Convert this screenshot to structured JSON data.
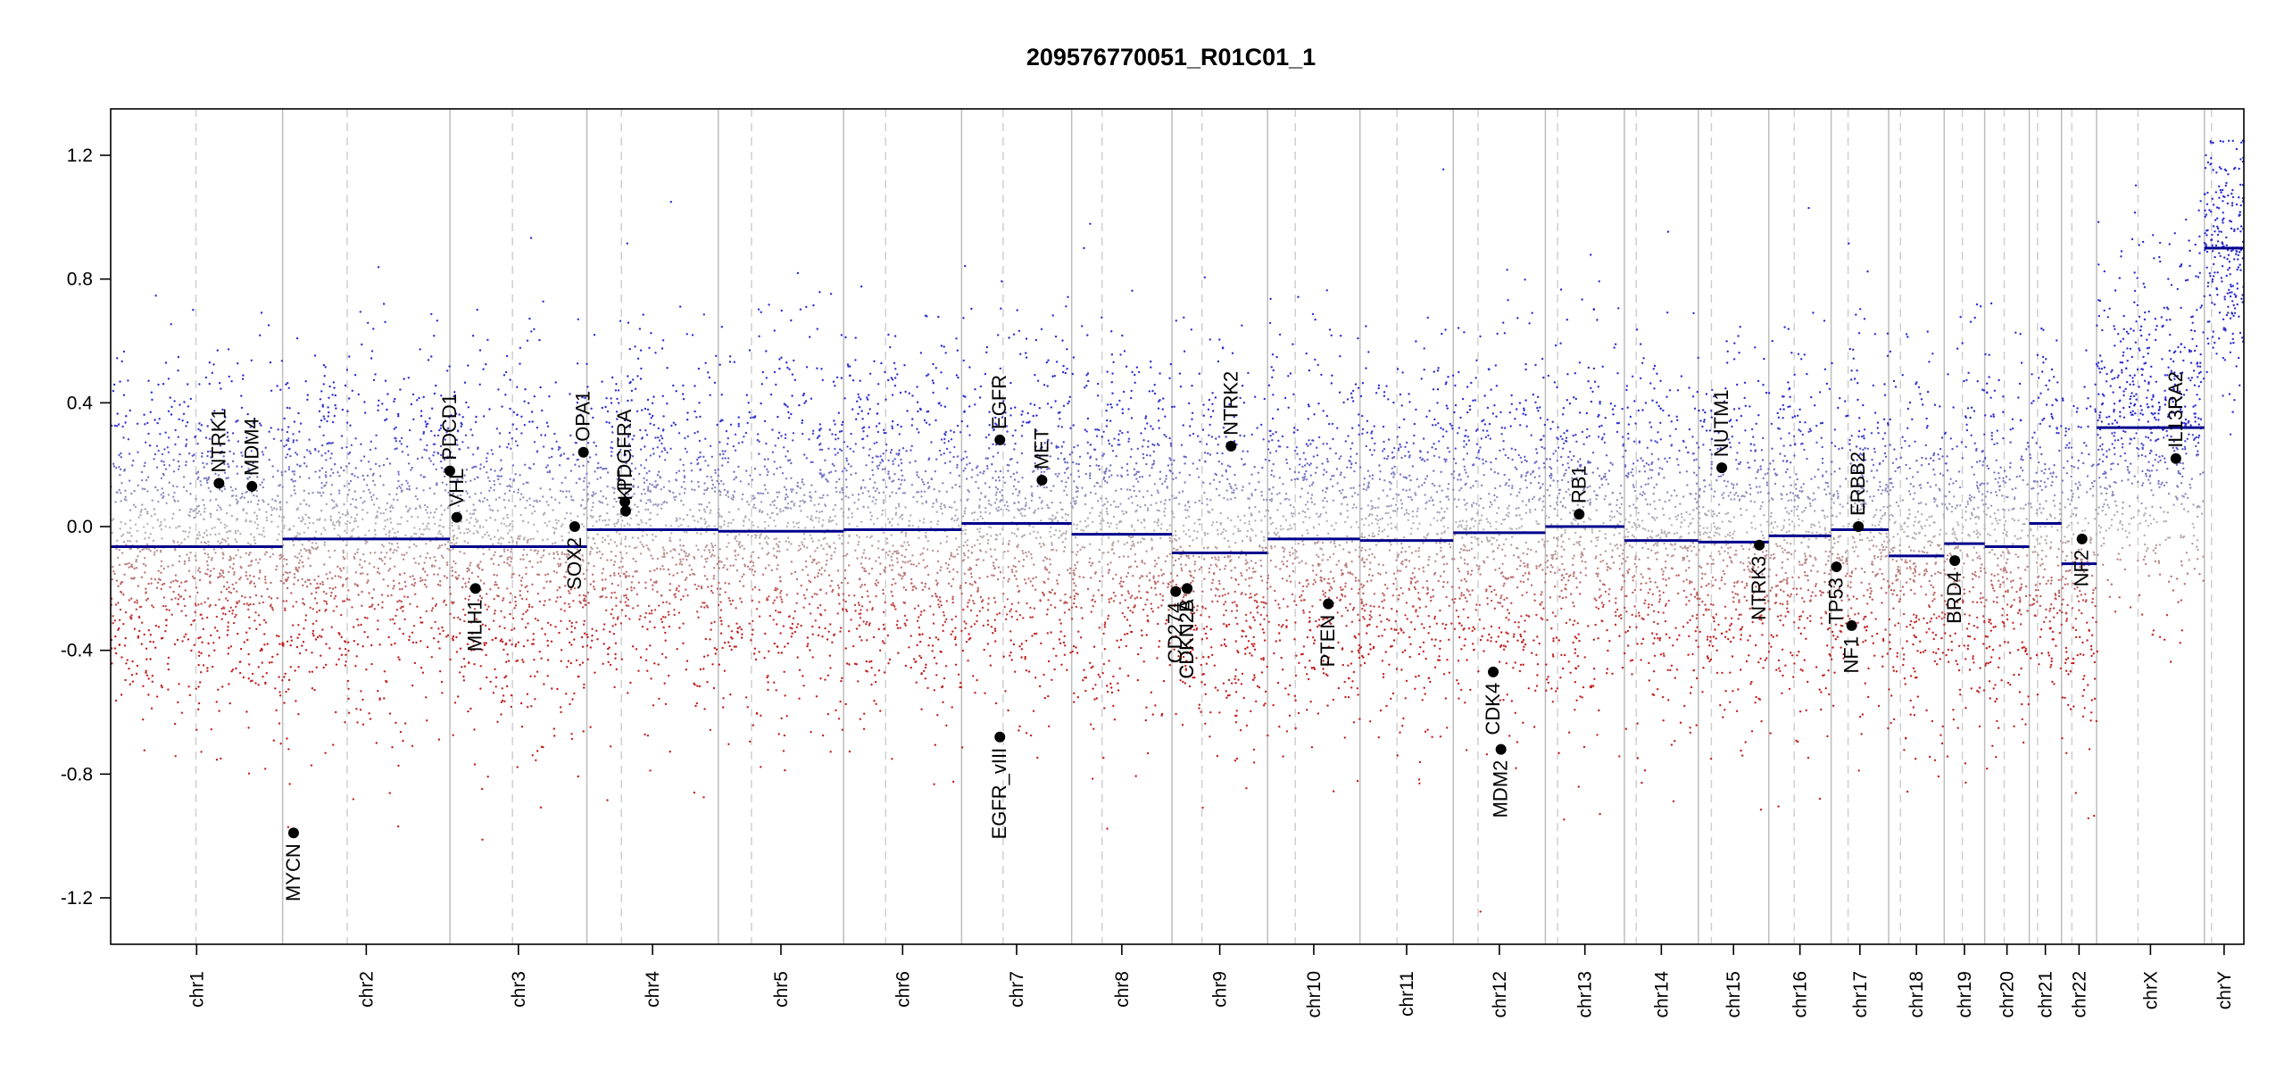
{
  "chart_data": {
    "type": "scatter",
    "title": "209576770051_R01C01_1",
    "xlabel": "",
    "ylabel": "",
    "ylim": [
      -1.35,
      1.35
    ],
    "y_ticks": [
      -1.2,
      -0.8,
      -0.4,
      0.0,
      0.4,
      0.8,
      1.2
    ],
    "y_tick_labels": [
      "-1.2",
      "-0.8",
      "-0.4",
      "0.0",
      "0.4",
      "0.8",
      "1.2"
    ],
    "chromosomes": [
      {
        "name": "chr1",
        "start": 0,
        "end": 248.9,
        "centromere": 123.4,
        "segment": -0.065
      },
      {
        "name": "chr2",
        "start": 248.9,
        "end": 491.1,
        "centromere": 342.4,
        "segment": -0.04
      },
      {
        "name": "chr3",
        "start": 491.1,
        "end": 689.4,
        "centromere": 581.7,
        "segment": -0.065
      },
      {
        "name": "chr4",
        "start": 689.4,
        "end": 879.6,
        "centromere": 739.4,
        "segment": -0.01
      },
      {
        "name": "chr5",
        "start": 879.6,
        "end": 1061.1,
        "centromere": 927.7,
        "segment": -0.015
      },
      {
        "name": "chr6",
        "start": 1061.1,
        "end": 1231.9,
        "centromere": 1121.9,
        "segment": -0.01
      },
      {
        "name": "chr7",
        "start": 1231.9,
        "end": 1391.2,
        "centromere": 1292.0,
        "segment": 0.01
      },
      {
        "name": "chr8",
        "start": 1391.2,
        "end": 1536.4,
        "centromere": 1435.2,
        "segment": -0.025
      },
      {
        "name": "chr9",
        "start": 1536.4,
        "end": 1674.8,
        "centromere": 1579.8,
        "segment": -0.085
      },
      {
        "name": "chr10",
        "start": 1674.8,
        "end": 1808.6,
        "centromere": 1714.9,
        "segment": -0.04
      },
      {
        "name": "chr11",
        "start": 1808.6,
        "end": 1943.7,
        "centromere": 1862.2,
        "segment": -0.045
      },
      {
        "name": "chr12",
        "start": 1943.7,
        "end": 2077.0,
        "centromere": 1979.5,
        "segment": -0.02
      },
      {
        "name": "chr13",
        "start": 2077.0,
        "end": 2191.4,
        "centromere": 2094.7,
        "segment": 0.0
      },
      {
        "name": "chr14",
        "start": 2191.4,
        "end": 2298.4,
        "centromere": 2208.5,
        "segment": -0.045
      },
      {
        "name": "chr15",
        "start": 2298.4,
        "end": 2400.4,
        "centromere": 2317.3,
        "segment": -0.05
      },
      {
        "name": "chr16",
        "start": 2400.4,
        "end": 2490.7,
        "centromere": 2437.2,
        "segment": -0.03
      },
      {
        "name": "chr17",
        "start": 2490.7,
        "end": 2574.0,
        "centromere": 2515.2,
        "segment": -0.01
      },
      {
        "name": "chr18",
        "start": 2574.0,
        "end": 2654.4,
        "centromere": 2591.0,
        "segment": -0.095
      },
      {
        "name": "chr19",
        "start": 2654.4,
        "end": 2713.0,
        "centromere": 2680.6,
        "segment": -0.055
      },
      {
        "name": "chr20",
        "start": 2713.0,
        "end": 2777.5,
        "centromere": 2741.3,
        "segment": -0.065
      },
      {
        "name": "chr21",
        "start": 2777.5,
        "end": 2824.2,
        "centromere": 2789.5,
        "segment": 0.01
      },
      {
        "name": "chr22",
        "start": 2824.2,
        "end": 2875.0,
        "centromere": 2839.2,
        "segment": -0.12
      },
      {
        "name": "chrX",
        "start": 2875.0,
        "end": 3031.0,
        "centromere": 2935.0,
        "segment": 0.32
      },
      {
        "name": "chrY",
        "start": 3031.0,
        "end": 3088.2,
        "centromere": 3041.4,
        "segment": 0.9
      }
    ],
    "genes": [
      {
        "name": "NTRK1",
        "x": 156.8,
        "y": 0.14
      },
      {
        "name": "MDM4",
        "x": 204.5,
        "y": 0.13
      },
      {
        "name": "MYCN",
        "x": 264.8,
        "y": -0.99
      },
      {
        "name": "VHL",
        "x": 501.1,
        "y": 0.03
      },
      {
        "name": "PDCD1",
        "x": 491.0,
        "y": 0.18
      },
      {
        "name": "MLH1",
        "x": 528.1,
        "y": -0.2
      },
      {
        "name": "SOX2",
        "x": 671.8,
        "y": 0.0
      },
      {
        "name": "OPA1",
        "x": 684.4,
        "y": 0.24
      },
      {
        "name": "PDGFRA",
        "x": 744.4,
        "y": 0.08
      },
      {
        "name": "KIT",
        "x": 745.5,
        "y": 0.05
      },
      {
        "name": "EGFR",
        "x": 1287.3,
        "y": 0.28
      },
      {
        "name": "MET",
        "x": 1348.2,
        "y": 0.15
      },
      {
        "name": "EGFR_vIII",
        "x": 1287.3,
        "y": -0.68
      },
      {
        "name": "NTRK2",
        "x": 1622.0,
        "y": 0.26
      },
      {
        "name": "CD274",
        "x": 1541.8,
        "y": -0.21
      },
      {
        "name": "CDKN2A",
        "x": 1558.4,
        "y": -0.2
      },
      {
        "name": "CDKN2B",
        "x": 1558.4,
        "y": -0.2
      },
      {
        "name": "PTEN",
        "x": 1762.7,
        "y": -0.25
      },
      {
        "name": "CDK4",
        "x": 2001.5,
        "y": -0.47
      },
      {
        "name": "MDM2",
        "x": 2012.7,
        "y": -0.72
      },
      {
        "name": "RB1",
        "x": 2125.9,
        "y": 0.04
      },
      {
        "name": "NUTM1",
        "x": 2332.4,
        "y": 0.19
      },
      {
        "name": "NTRK3",
        "x": 2386.7,
        "y": -0.06
      },
      {
        "name": "TP53",
        "x": 2498.4,
        "y": -0.13
      },
      {
        "name": "ERBB2",
        "x": 2530.2,
        "y": 0.0
      },
      {
        "name": "NF1",
        "x": 2520.5,
        "y": -0.32
      },
      {
        "name": "BRD4",
        "x": 2669.7,
        "y": -0.11
      },
      {
        "name": "NF2",
        "x": 2853.9,
        "y": -0.04
      },
      {
        "name": "IL13RA2",
        "x": 2989.8,
        "y": 0.22
      }
    ],
    "colors": {
      "gain": "#2b2bd4",
      "loss": "#c41e1e",
      "neutral": "#b8b8b8",
      "segment": "#00008b",
      "boundary": "#bdbdbd",
      "centromere": "#cfcfcf",
      "gene_point": "#000000"
    }
  }
}
